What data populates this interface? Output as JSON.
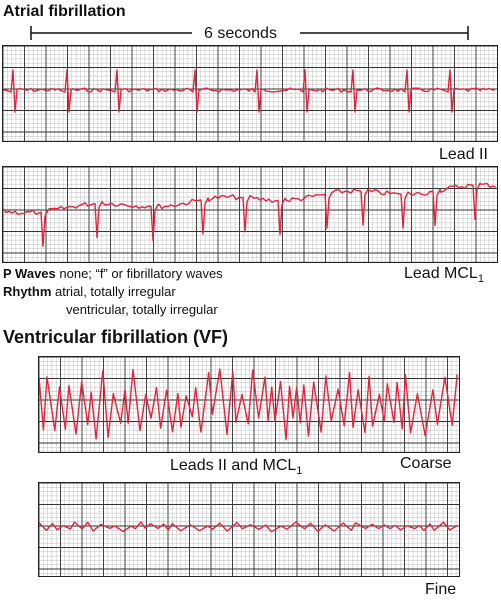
{
  "afib": {
    "title": "Atrial fibrillation",
    "scale_label": "6 seconds",
    "lead1_label": "Lead II",
    "lead2_label_main": "Lead MCL",
    "lead2_label_sub": "1",
    "pwaves_label": "P Waves",
    "pwaves_text": "none; “f” or fibrillatory waves",
    "rhythm_label": "Rhythm",
    "rhythm_line1": "atrial, totally irregular",
    "rhythm_line2": "ventricular, totally irregular"
  },
  "vfib": {
    "title": "Ventricular fibrillation (VF)",
    "leads_label_main": "Leads II and MCL",
    "leads_label_sub": "1",
    "coarse_label": "Coarse",
    "fine_label": "Fine"
  },
  "colors": {
    "trace": "#e0253f",
    "grid_minor": "#bdbdbd",
    "grid_major": "#333333"
  }
}
